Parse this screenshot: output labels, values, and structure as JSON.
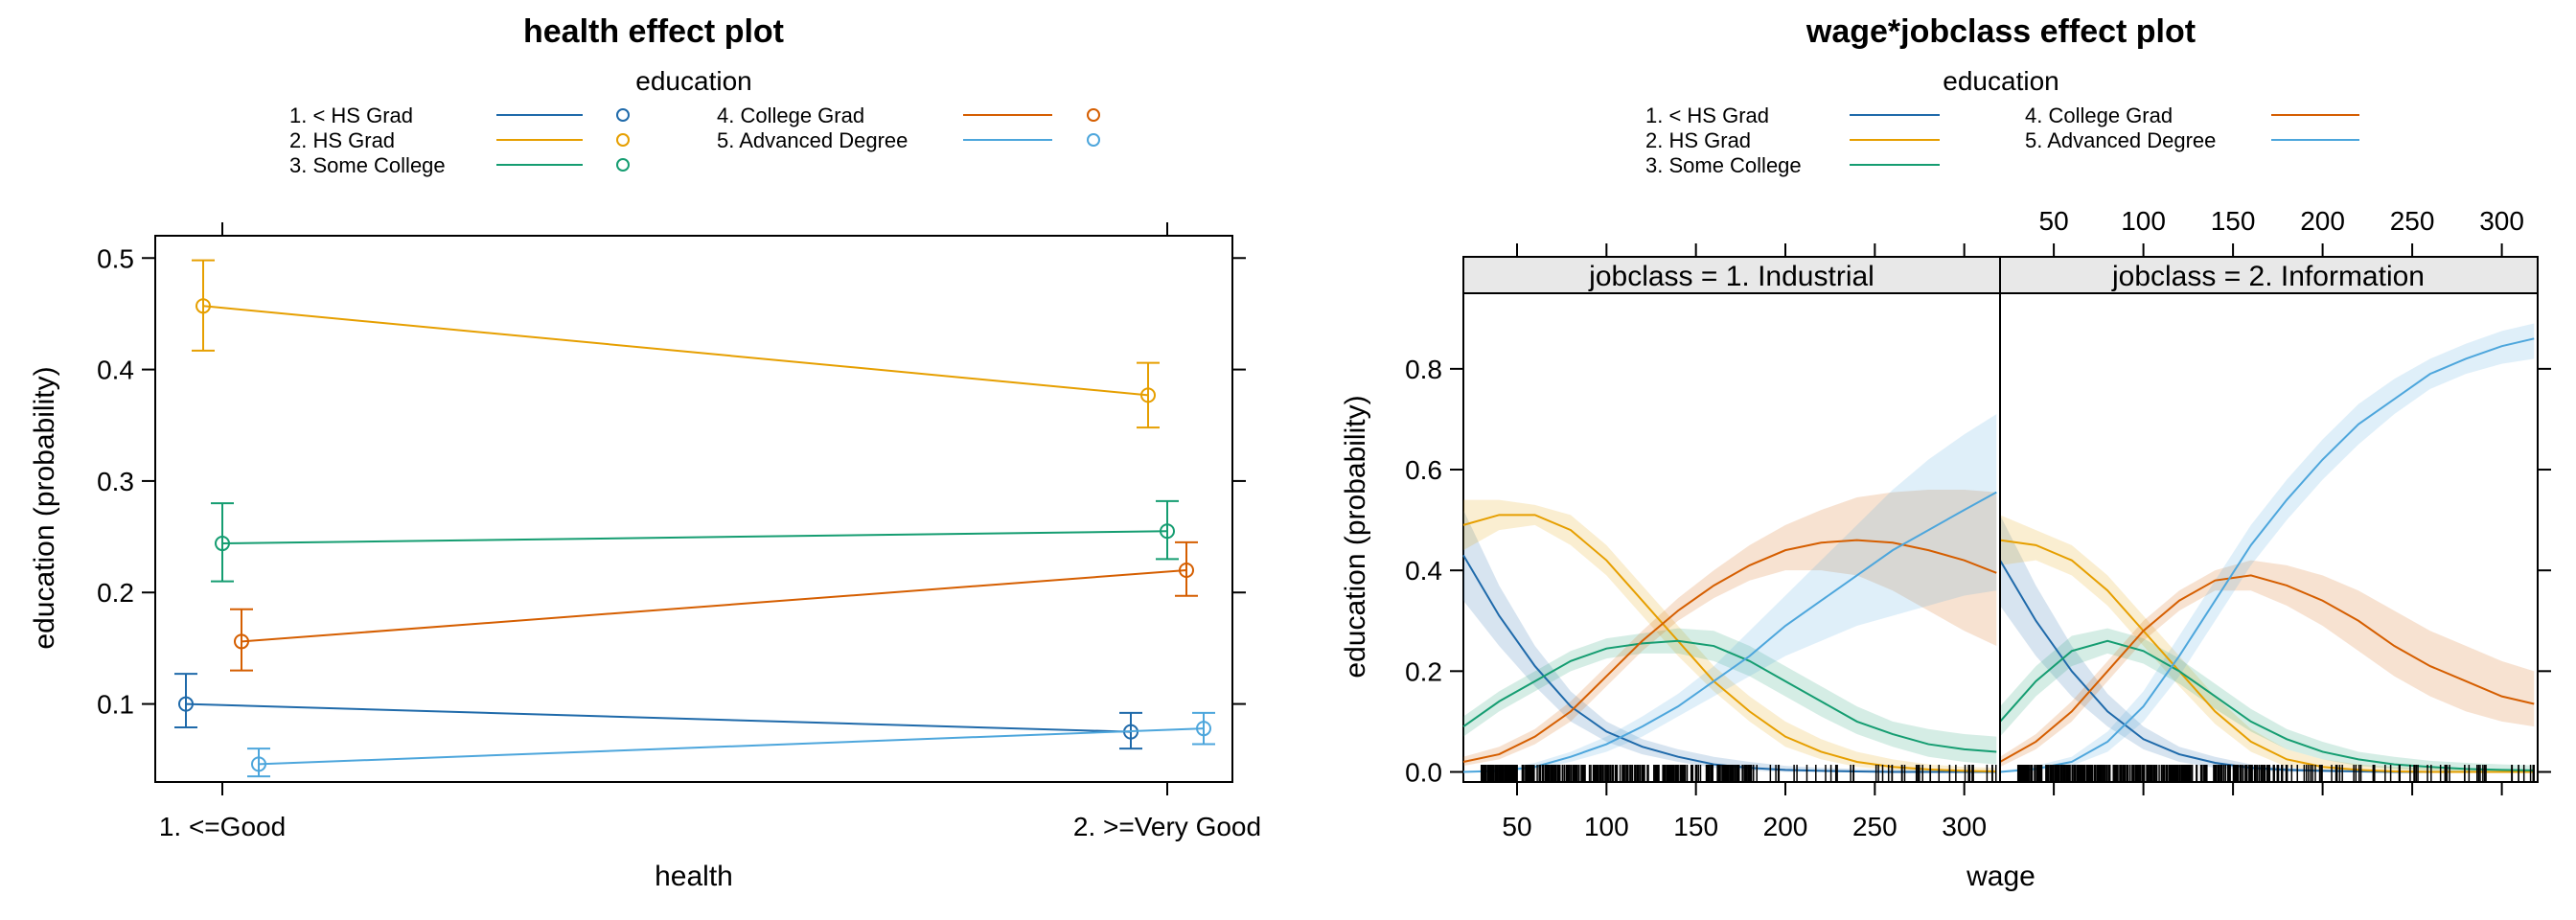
{
  "colors": {
    "1": "#1f6aaa",
    "2": "#e69f00",
    "3": "#159d71",
    "4": "#d55e00",
    "5": "#4da6dc"
  },
  "legend": {
    "title": "education",
    "entries": [
      {
        "id": "1",
        "label": "1. < HS Grad"
      },
      {
        "id": "2",
        "label": "2. HS Grad"
      },
      {
        "id": "3",
        "label": "3. Some College"
      },
      {
        "id": "4",
        "label": "4. College Grad"
      },
      {
        "id": "5",
        "label": "5. Advanced Degree"
      }
    ]
  },
  "chart_data": [
    {
      "type": "line",
      "title": "health effect plot",
      "xlabel": "health",
      "ylabel": "education (probability)",
      "categories": [
        "1. <=Good",
        "2. >=Very Good"
      ],
      "ylim": [
        0.03,
        0.52
      ],
      "yticks": [
        "0.1",
        "0.2",
        "0.3",
        "0.4",
        "0.5"
      ],
      "series": [
        {
          "id": "1",
          "name": "1. < HS Grad",
          "values": [
            0.1,
            0.075
          ],
          "lower": [
            0.079,
            0.06
          ],
          "upper": [
            0.127,
            0.092
          ]
        },
        {
          "id": "2",
          "name": "2. HS Grad",
          "values": [
            0.457,
            0.377
          ],
          "lower": [
            0.417,
            0.348
          ],
          "upper": [
            0.498,
            0.406
          ]
        },
        {
          "id": "3",
          "name": "3. Some College",
          "values": [
            0.244,
            0.255
          ],
          "lower": [
            0.21,
            0.23
          ],
          "upper": [
            0.28,
            0.282
          ]
        },
        {
          "id": "4",
          "name": "4. College Grad",
          "values": [
            0.156,
            0.22
          ],
          "lower": [
            0.13,
            0.197
          ],
          "upper": [
            0.185,
            0.245
          ]
        },
        {
          "id": "5",
          "name": "5. Advanced Degree",
          "values": [
            0.046,
            0.078
          ],
          "lower": [
            0.035,
            0.064
          ],
          "upper": [
            0.06,
            0.092
          ]
        }
      ]
    },
    {
      "type": "line",
      "title": "wage*jobclass effect plot",
      "xlabel": "wage",
      "ylabel": "education (probability)",
      "xlim": [
        20,
        320
      ],
      "ylim": [
        -0.02,
        0.95
      ],
      "xticks": [
        "50",
        "100",
        "150",
        "200",
        "250",
        "300"
      ],
      "yticks": [
        "0.0",
        "0.2",
        "0.4",
        "0.6",
        "0.8"
      ],
      "panels": [
        {
          "strip": "jobclass = 1. Industrial",
          "x": [
            20,
            40,
            60,
            80,
            100,
            120,
            140,
            160,
            180,
            200,
            220,
            240,
            260,
            280,
            300,
            318
          ],
          "series": [
            {
              "id": "1",
              "values": [
                0.43,
                0.31,
                0.21,
                0.13,
                0.08,
                0.05,
                0.03,
                0.015,
                0.008,
                0.004,
                0.002,
                0.001,
                0.0,
                0.0,
                0.0,
                0.0
              ],
              "lower": [
                0.34,
                0.25,
                0.17,
                0.1,
                0.06,
                0.035,
                0.02,
                0.008,
                0.003,
                0.0,
                0.0,
                0.0,
                0.0,
                0.0,
                0.0,
                0.0
              ],
              "upper": [
                0.52,
                0.37,
                0.25,
                0.16,
                0.1,
                0.065,
                0.045,
                0.03,
                0.02,
                0.012,
                0.008,
                0.006,
                0.005,
                0.004,
                0.003,
                0.003
              ]
            },
            {
              "id": "2",
              "values": [
                0.49,
                0.51,
                0.51,
                0.48,
                0.42,
                0.34,
                0.26,
                0.18,
                0.12,
                0.07,
                0.04,
                0.02,
                0.01,
                0.005,
                0.002,
                0.001
              ],
              "lower": [
                0.44,
                0.48,
                0.49,
                0.45,
                0.39,
                0.31,
                0.23,
                0.16,
                0.1,
                0.05,
                0.025,
                0.01,
                0.004,
                0.001,
                0.0,
                0.0
              ],
              "upper": [
                0.54,
                0.54,
                0.53,
                0.51,
                0.45,
                0.37,
                0.29,
                0.21,
                0.15,
                0.1,
                0.065,
                0.04,
                0.025,
                0.015,
                0.01,
                0.008
              ]
            },
            {
              "id": "3",
              "values": [
                0.09,
                0.14,
                0.18,
                0.22,
                0.245,
                0.255,
                0.26,
                0.25,
                0.22,
                0.18,
                0.14,
                0.1,
                0.075,
                0.055,
                0.045,
                0.04
              ],
              "lower": [
                0.07,
                0.12,
                0.16,
                0.2,
                0.225,
                0.235,
                0.235,
                0.22,
                0.19,
                0.15,
                0.11,
                0.075,
                0.05,
                0.03,
                0.02,
                0.015
              ],
              "upper": [
                0.11,
                0.16,
                0.2,
                0.24,
                0.265,
                0.275,
                0.285,
                0.28,
                0.25,
                0.21,
                0.17,
                0.13,
                0.1,
                0.085,
                0.075,
                0.07
              ]
            },
            {
              "id": "4",
              "values": [
                0.02,
                0.035,
                0.07,
                0.12,
                0.19,
                0.26,
                0.32,
                0.37,
                0.41,
                0.44,
                0.455,
                0.46,
                0.455,
                0.44,
                0.42,
                0.395
              ],
              "lower": [
                0.012,
                0.025,
                0.055,
                0.1,
                0.17,
                0.24,
                0.3,
                0.345,
                0.38,
                0.4,
                0.4,
                0.39,
                0.36,
                0.32,
                0.28,
                0.25
              ],
              "upper": [
                0.03,
                0.05,
                0.085,
                0.14,
                0.21,
                0.28,
                0.345,
                0.4,
                0.45,
                0.49,
                0.52,
                0.545,
                0.555,
                0.56,
                0.56,
                0.555
              ]
            },
            {
              "id": "5",
              "values": [
                0.0,
                0.002,
                0.01,
                0.03,
                0.055,
                0.09,
                0.13,
                0.18,
                0.23,
                0.29,
                0.34,
                0.39,
                0.44,
                0.48,
                0.52,
                0.555
              ],
              "lower": [
                0.0,
                0.0,
                0.005,
                0.02,
                0.04,
                0.07,
                0.11,
                0.15,
                0.19,
                0.23,
                0.26,
                0.29,
                0.31,
                0.33,
                0.35,
                0.36
              ],
              "upper": [
                0.002,
                0.005,
                0.018,
                0.04,
                0.07,
                0.11,
                0.155,
                0.21,
                0.28,
                0.35,
                0.42,
                0.49,
                0.56,
                0.62,
                0.67,
                0.71
              ]
            }
          ]
        },
        {
          "strip": "jobclass = 2. Information",
          "x": [
            20,
            40,
            60,
            80,
            100,
            120,
            140,
            160,
            180,
            200,
            220,
            240,
            260,
            280,
            300,
            318
          ],
          "series": [
            {
              "id": "1",
              "values": [
                0.42,
                0.3,
                0.2,
                0.12,
                0.065,
                0.035,
                0.018,
                0.008,
                0.004,
                0.002,
                0.001,
                0.0,
                0.0,
                0.0,
                0.0,
                0.0
              ],
              "lower": [
                0.33,
                0.23,
                0.15,
                0.09,
                0.045,
                0.02,
                0.008,
                0.003,
                0.0,
                0.0,
                0.0,
                0.0,
                0.0,
                0.0,
                0.0,
                0.0
              ],
              "upper": [
                0.51,
                0.37,
                0.25,
                0.155,
                0.09,
                0.05,
                0.03,
                0.015,
                0.008,
                0.005,
                0.004,
                0.003,
                0.002,
                0.002,
                0.002,
                0.002
              ]
            },
            {
              "id": "2",
              "values": [
                0.46,
                0.45,
                0.42,
                0.36,
                0.28,
                0.2,
                0.12,
                0.06,
                0.025,
                0.01,
                0.004,
                0.001,
                0.0,
                0.0,
                0.0,
                0.0
              ],
              "lower": [
                0.41,
                0.42,
                0.39,
                0.33,
                0.25,
                0.17,
                0.095,
                0.04,
                0.01,
                0.002,
                0.0,
                0.0,
                0.0,
                0.0,
                0.0,
                0.0
              ],
              "upper": [
                0.51,
                0.48,
                0.45,
                0.39,
                0.31,
                0.23,
                0.15,
                0.085,
                0.045,
                0.025,
                0.015,
                0.01,
                0.008,
                0.006,
                0.005,
                0.005
              ]
            },
            {
              "id": "3",
              "values": [
                0.1,
                0.18,
                0.24,
                0.26,
                0.24,
                0.2,
                0.15,
                0.1,
                0.065,
                0.04,
                0.025,
                0.015,
                0.01,
                0.006,
                0.004,
                0.003
              ],
              "lower": [
                0.07,
                0.15,
                0.21,
                0.235,
                0.215,
                0.175,
                0.125,
                0.08,
                0.045,
                0.025,
                0.012,
                0.006,
                0.003,
                0.001,
                0.0,
                0.0
              ],
              "upper": [
                0.13,
                0.21,
                0.27,
                0.285,
                0.265,
                0.225,
                0.175,
                0.125,
                0.085,
                0.06,
                0.04,
                0.03,
                0.022,
                0.018,
                0.015,
                0.013
              ]
            },
            {
              "id": "4",
              "values": [
                0.02,
                0.06,
                0.12,
                0.2,
                0.28,
                0.34,
                0.38,
                0.39,
                0.37,
                0.34,
                0.3,
                0.25,
                0.21,
                0.18,
                0.15,
                0.135
              ],
              "lower": [
                0.01,
                0.045,
                0.1,
                0.18,
                0.26,
                0.32,
                0.36,
                0.36,
                0.33,
                0.29,
                0.24,
                0.19,
                0.15,
                0.12,
                0.1,
                0.09
              ],
              "upper": [
                0.03,
                0.075,
                0.14,
                0.22,
                0.3,
                0.36,
                0.4,
                0.42,
                0.41,
                0.39,
                0.36,
                0.32,
                0.28,
                0.25,
                0.22,
                0.2
              ]
            },
            {
              "id": "5",
              "values": [
                0.0,
                0.006,
                0.02,
                0.06,
                0.13,
                0.23,
                0.34,
                0.45,
                0.54,
                0.62,
                0.69,
                0.74,
                0.79,
                0.82,
                0.845,
                0.86
              ],
              "lower": [
                0.0,
                0.002,
                0.012,
                0.04,
                0.1,
                0.19,
                0.3,
                0.41,
                0.5,
                0.58,
                0.65,
                0.71,
                0.76,
                0.79,
                0.81,
                0.82
              ],
              "upper": [
                0.002,
                0.012,
                0.03,
                0.08,
                0.16,
                0.27,
                0.38,
                0.49,
                0.58,
                0.66,
                0.73,
                0.78,
                0.82,
                0.85,
                0.875,
                0.89
              ]
            }
          ]
        }
      ]
    }
  ]
}
